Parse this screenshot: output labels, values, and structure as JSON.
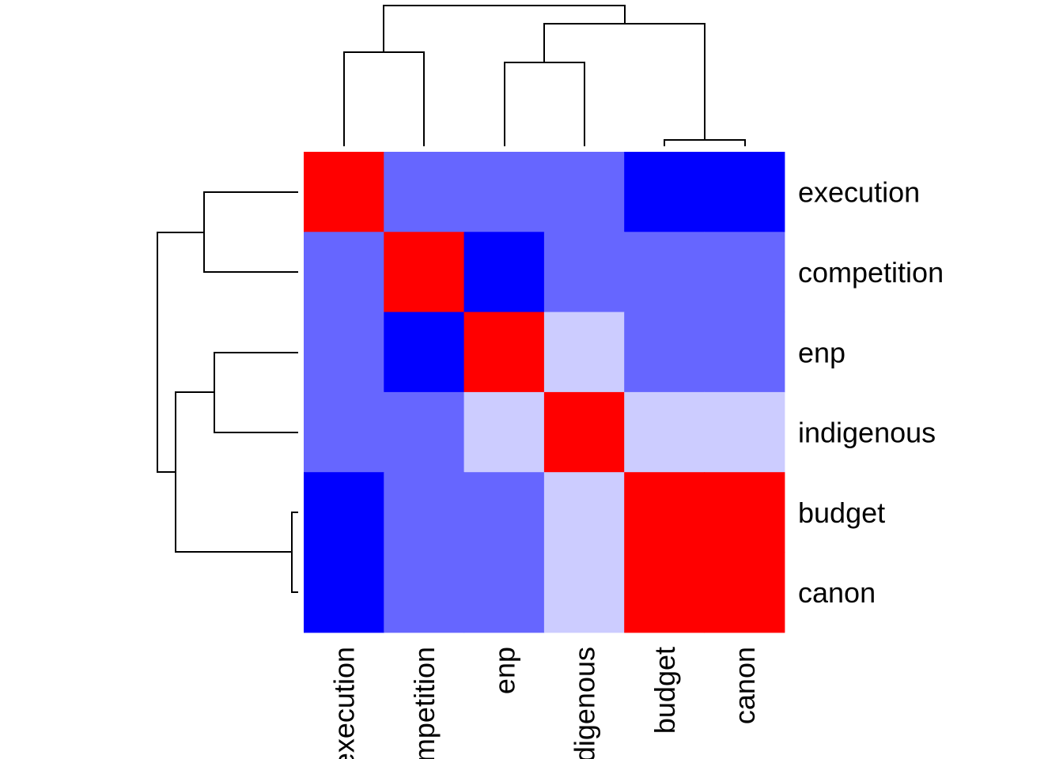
{
  "chart_data": {
    "type": "heatmap",
    "title": "",
    "xlabel": "",
    "ylabel": "",
    "row_labels": [
      "execution",
      "competition",
      "enp",
      "indigenous",
      "budget",
      "canon"
    ],
    "column_labels": [
      "execution",
      "competition",
      "enp",
      "indigenous",
      "budget",
      "canon"
    ],
    "matrix": [
      [
        1,
        -0.6,
        -0.6,
        -0.6,
        -1,
        -1
      ],
      [
        -0.6,
        1,
        -1,
        -0.6,
        -0.6,
        -0.6
      ],
      [
        -0.6,
        -1,
        1,
        -0.2,
        -0.6,
        -0.6
      ],
      [
        -0.6,
        -0.6,
        -0.2,
        1,
        -0.2,
        -0.2
      ],
      [
        -1,
        -0.6,
        -0.6,
        -0.2,
        1,
        1
      ],
      [
        -1,
        -0.6,
        -0.6,
        -0.2,
        1,
        1
      ]
    ],
    "color_scale": {
      "low": "#0000FF",
      "mid_low": "#6666FF",
      "light": "#CCCCFF",
      "high": "#FF0000"
    },
    "row_dendrogram": true,
    "column_dendrogram": true,
    "legend": "none",
    "grid": false
  }
}
